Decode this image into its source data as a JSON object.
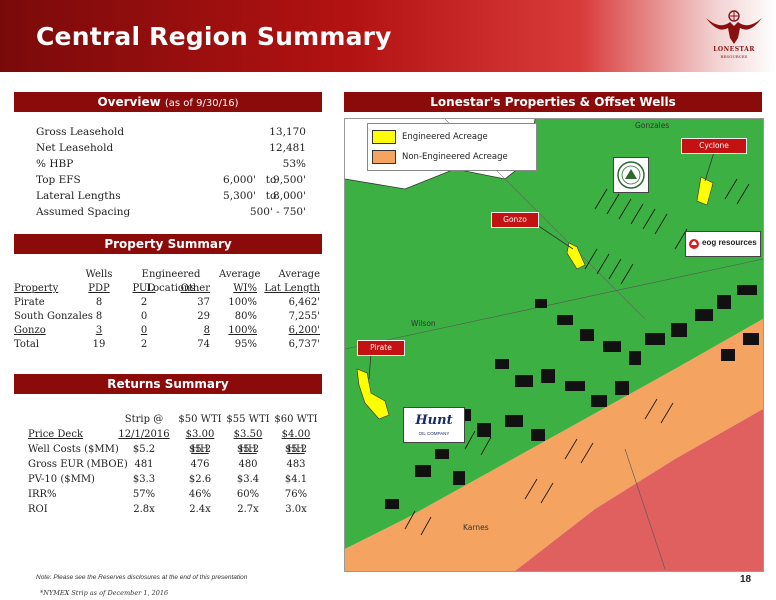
{
  "header": {
    "title": "Central Region Summary",
    "logo_name": "LONESTAR",
    "logo_sub": "RESOURCES"
  },
  "overview": {
    "heading": "Overview",
    "heading_note": "(as of 9/30/16)",
    "rows": [
      {
        "label": "Gross Leasehold",
        "value": "13,170"
      },
      {
        "label": "Net Leasehold",
        "value": "12,481"
      },
      {
        "label": "% HBP",
        "value": "53%"
      }
    ],
    "range_rows": [
      {
        "label": "Top EFS",
        "from": "6,000'",
        "to": "to",
        "end": "9,500'"
      },
      {
        "label": "Lateral Lengths",
        "from": "5,300'",
        "to": "to",
        "end": "8,000'"
      }
    ],
    "spacing": {
      "label": "Assumed Spacing",
      "value": "500' - 750'"
    }
  },
  "property_summary": {
    "heading": "Property Summary",
    "group_headers": [
      "Wells",
      "Engineered Locations",
      "Average",
      "Average"
    ],
    "columns": [
      "Property",
      "PDP",
      "PUD",
      "Other",
      "WI%",
      "Lat Length"
    ],
    "rows": [
      {
        "property": "Pirate",
        "pdp": "8",
        "pud": "2",
        "other": "37",
        "wi": "100%",
        "lat": "6,462'"
      },
      {
        "property": "South Gonzales",
        "pdp": "8",
        "pud": "0",
        "other": "29",
        "wi": "80%",
        "lat": "7,255'"
      },
      {
        "property": "Gonzo",
        "pdp": "3",
        "pud": "0",
        "other": "8",
        "wi": "100%",
        "lat": "6,200'"
      },
      {
        "property": "Total",
        "pdp": "19",
        "pud": "2",
        "other": "74",
        "wi": "95%",
        "lat": "6,737'"
      }
    ]
  },
  "returns_summary": {
    "heading": "Returns Summary",
    "col_headers": [
      "Strip @",
      "$50 WTI",
      "$55 WTI",
      "$60 WTI"
    ],
    "price_deck": {
      "label": "Price Deck",
      "values": [
        "12/1/2016",
        "$3.00 HH",
        "$3.50 HH",
        "$4.00 HH"
      ]
    },
    "rows": [
      {
        "label": "Well Costs ($MM)",
        "values": [
          "$5.2",
          "$5.2",
          "$5.2",
          "$5.2"
        ]
      },
      {
        "label": "Gross EUR (MBOE)",
        "values": [
          "481",
          "476",
          "480",
          "483"
        ]
      },
      {
        "label": "PV-10 ($MM)",
        "values": [
          "$3.3",
          "$2.6",
          "$3.4",
          "$4.1"
        ]
      },
      {
        "label": "IRR%",
        "values": [
          "57%",
          "46%",
          "60%",
          "76%"
        ]
      },
      {
        "label": "ROI",
        "values": [
          "2.8x",
          "2.4x",
          "2.7x",
          "3.0x"
        ]
      }
    ]
  },
  "map": {
    "heading": "Lonestar's Properties & Offset Wells",
    "legend": [
      {
        "label": "Engineered Acreage",
        "color": "#ffff00"
      },
      {
        "label": "Non-Engineered Acreage",
        "color": "#f4a460"
      }
    ],
    "callouts": {
      "cyclone": "Cyclone",
      "gonzo": "Gonzo",
      "pirate": "Pirate"
    },
    "county_labels": {
      "gonzales": "Gonzales",
      "wilson": "Wilson",
      "karnes": "Karnes"
    },
    "operators": {
      "eog": "eog resources",
      "hunt": "Hunt",
      "hunt_sub": "OIL COMPANY"
    },
    "colors": {
      "green": "#3cb043",
      "orange": "#f4a460",
      "red": "#e06060",
      "yellow": "#ffff00"
    }
  },
  "footer": {
    "note": "Note: Please see the Reserves disclosures at the end of this presentation",
    "footnote": "*NYMEX Strip as of December 1, 2016",
    "page_number": "18"
  }
}
